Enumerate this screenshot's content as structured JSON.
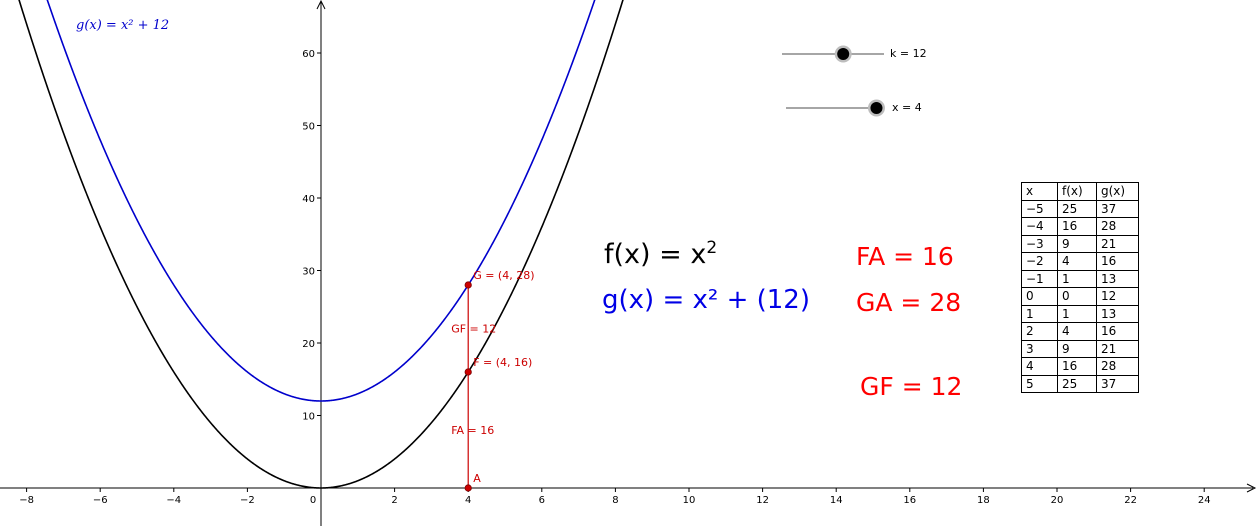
{
  "chart_data": {
    "type": "line",
    "x_range": [
      -8.7,
      25
    ],
    "y_range": [
      -5,
      67
    ],
    "x_ticks": [
      -8,
      -6,
      -4,
      -2,
      0,
      2,
      4,
      6,
      8,
      10,
      12,
      14,
      16,
      18,
      20,
      22,
      24
    ],
    "x_tick_labels": [
      "−8",
      "−6",
      "−4",
      "−2",
      "0",
      "2",
      "4",
      "6",
      "8",
      "10",
      "12",
      "14",
      "16",
      "18",
      "20",
      "22",
      "24"
    ],
    "y_ticks": [
      10,
      20,
      30,
      40,
      50,
      60
    ],
    "y_tick_labels": [
      "10",
      "20",
      "30",
      "40",
      "50",
      "60"
    ],
    "grid": false,
    "series": [
      {
        "name": "f",
        "expression": "x^2",
        "k": 0,
        "color": "#000000"
      },
      {
        "name": "g",
        "expression": "x^2 + 12",
        "k": 12,
        "color": "#0000cc"
      }
    ],
    "points": [
      {
        "name": "A",
        "x": 4,
        "y": 0,
        "label": "A"
      },
      {
        "name": "F",
        "x": 4,
        "y": 16,
        "label": "F = (4, 16)"
      },
      {
        "name": "G",
        "x": 4,
        "y": 28,
        "label": "G = (4, 28)"
      }
    ],
    "segments": [
      {
        "from": "A",
        "to": "F",
        "label": "FA = 16"
      },
      {
        "from": "F",
        "to": "G",
        "label": "GF = 12"
      }
    ],
    "point_color": "#cc0000",
    "formula_label": "g(x) = x² + 12"
  },
  "sliders": [
    {
      "name": "k",
      "value": 12,
      "label": "k = 12"
    },
    {
      "name": "x",
      "value": 4,
      "label": "x = 4"
    }
  ],
  "equations": {
    "f_prefix": "f(x) = x",
    "f_exponent": "2",
    "g_text": "g(x) = x² + (12)"
  },
  "measurements": {
    "fa": "FA = 16",
    "ga": "GA = 28",
    "gf": "GF = 12"
  },
  "table": {
    "headers": [
      "x",
      "f(x)",
      "g(x)"
    ],
    "rows": [
      [
        "−5",
        "25",
        "37"
      ],
      [
        "−4",
        "16",
        "28"
      ],
      [
        "−3",
        "9",
        "21"
      ],
      [
        "−2",
        "4",
        "16"
      ],
      [
        "−1",
        "1",
        "13"
      ],
      [
        "0",
        "0",
        "12"
      ],
      [
        "1",
        "1",
        "13"
      ],
      [
        "2",
        "4",
        "16"
      ],
      [
        "3",
        "9",
        "21"
      ],
      [
        "4",
        "16",
        "28"
      ],
      [
        "5",
        "25",
        "37"
      ]
    ]
  }
}
